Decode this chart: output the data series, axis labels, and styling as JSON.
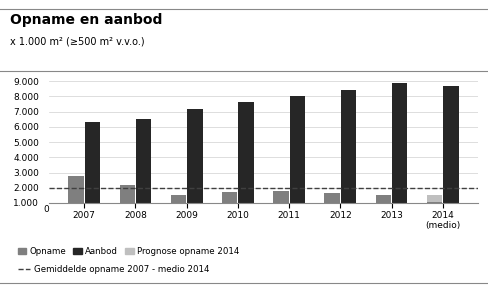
{
  "title": "Opname en aanbod",
  "subtitle": "x 1.000 m² (≥500 m² v.v.o.)",
  "years": [
    "2007",
    "2008",
    "2009",
    "2010",
    "2011",
    "2012",
    "2013",
    "2014\n(medio)"
  ],
  "opname": [
    2800,
    2200,
    1500,
    1700,
    1800,
    1650,
    1550,
    1050
  ],
  "aanbod": [
    6300,
    6500,
    7150,
    7650,
    8050,
    8450,
    8900,
    8700
  ],
  "prognose": [
    0,
    0,
    0,
    0,
    0,
    0,
    0,
    450
  ],
  "avg_line": 2000,
  "ylim": [
    1000,
    9000
  ],
  "yticks": [
    1000,
    2000,
    3000,
    4000,
    5000,
    6000,
    7000,
    8000,
    9000
  ],
  "color_opname": "#7f7f7f",
  "color_aanbod": "#262626",
  "color_prognose": "#bfbfbf",
  "color_avg_line": "#404040",
  "legend_opname": "Opname",
  "legend_aanbod": "Aanbod",
  "legend_prognose": "Prognose opname 2014",
  "legend_avg": "Gemiddelde opname 2007 - medio 2014",
  "background_color": "#ffffff"
}
